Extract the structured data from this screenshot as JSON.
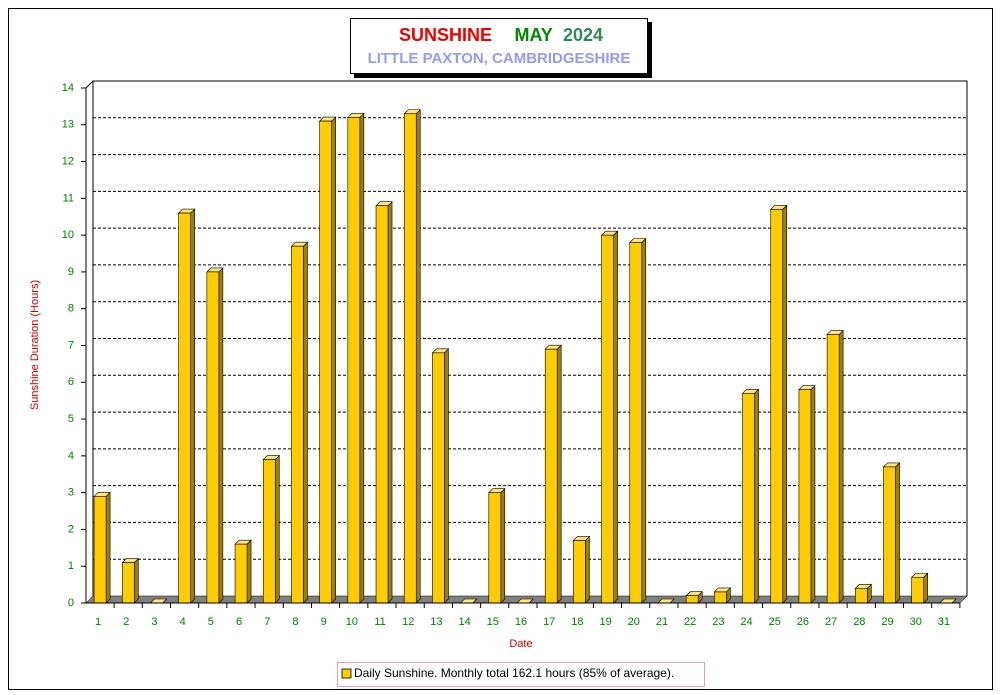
{
  "chart_data": {
    "type": "bar3d",
    "title": "SUNSHINE",
    "title_month": "MAY",
    "title_year": "2024",
    "subtitle": "LITTLE PAXTON, CAMBRIDGESHIRE",
    "x_label": "Date",
    "y_label": "Sunshine Duration (Hours)",
    "categories": [
      "1",
      "2",
      "3",
      "4",
      "5",
      "6",
      "7",
      "8",
      "9",
      "10",
      "11",
      "12",
      "13",
      "14",
      "15",
      "16",
      "17",
      "18",
      "19",
      "20",
      "21",
      "22",
      "23",
      "24",
      "25",
      "26",
      "27",
      "28",
      "29",
      "30",
      "31"
    ],
    "series": [
      {
        "name": "Daily Sunshine. Monthly total 162.1 hours (85% of average).",
        "color": "#ffcc00",
        "values": [
          2.9,
          1.1,
          0,
          10.6,
          9.0,
          1.6,
          3.9,
          9.7,
          13.1,
          13.2,
          10.8,
          13.3,
          6.8,
          0,
          3.0,
          0,
          6.9,
          1.7,
          10.0,
          9.8,
          0,
          0.2,
          0.3,
          5.7,
          10.7,
          5.8,
          7.3,
          0.4,
          3.7,
          0.7,
          0
        ]
      }
    ],
    "ylim": [
      0,
      14
    ],
    "yticks": [
      0,
      1,
      2,
      3,
      4,
      5,
      6,
      7,
      8,
      9,
      10,
      11,
      12,
      13,
      14
    ],
    "grid": true
  }
}
